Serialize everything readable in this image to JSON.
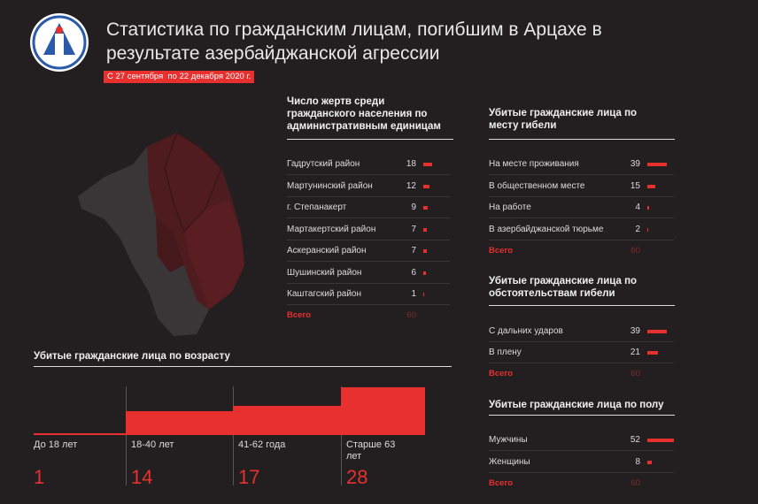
{
  "header": {
    "title": "Статистика по гражданским лицам, погибшим в Арцахе в результате азербайджанской агрессии",
    "date": "С 27 сентября  по 22 декабря 2020 г."
  },
  "chart_data": [
    {
      "type": "bar",
      "title": "Число жертв среди гражданского населения по административным единицам",
      "categories": [
        "Гадрутский район",
        "Мартунинский район",
        "г. Степанакерт",
        "Мартакертский район",
        "Аскеранский район",
        "Шушинский район",
        "Каштагский район"
      ],
      "values": [
        18,
        12,
        9,
        7,
        7,
        6,
        1
      ],
      "color": "#e8302f",
      "total_label": "Всего",
      "total": 60
    },
    {
      "type": "bar",
      "title": "Убитые гражданские лица по месту гибели",
      "categories": [
        "На месте проживания",
        "В общественном месте",
        "На работе",
        "В азербайджанской тюрьме"
      ],
      "values": [
        39,
        15,
        4,
        2
      ],
      "color": "#e8302f",
      "total_label": "Всего",
      "total": 60
    },
    {
      "type": "bar",
      "title": "Убитые гражданские лица по обстоятельствам гибели",
      "categories": [
        "С дальних ударов",
        "В плену"
      ],
      "values": [
        39,
        21
      ],
      "color": "#e8302f",
      "total_label": "Всего",
      "total": 60
    },
    {
      "type": "bar",
      "title": "Убитые гражданские лица по полу",
      "categories": [
        "Мужчины",
        "Женщины"
      ],
      "values": [
        52,
        8
      ],
      "color": "#e8302f",
      "total_label": "Всего",
      "total": 60
    },
    {
      "type": "column",
      "title": "Убитые гражданские лица по возрасту",
      "categories": [
        "До 18 лет",
        "18-40 лет",
        "41-62 года",
        "Старше 63 лет"
      ],
      "values": [
        1,
        14,
        17,
        28
      ],
      "color": "#e8302f"
    }
  ]
}
